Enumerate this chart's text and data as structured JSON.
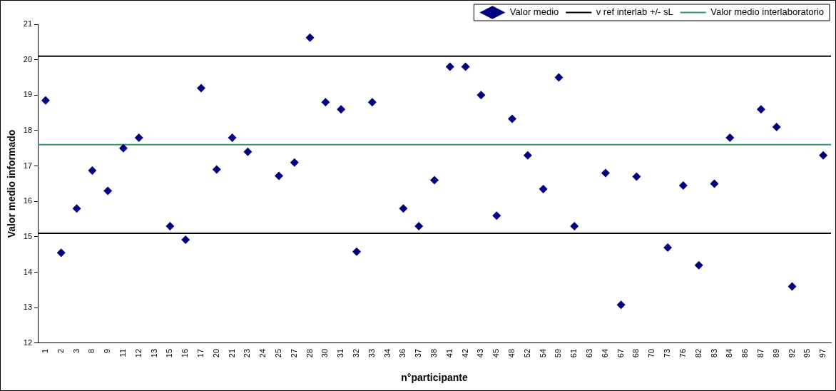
{
  "chart_data": {
    "type": "scatter",
    "xlabel": "n°participante",
    "ylabel": "Valor medio informado",
    "categories": [
      "1",
      "2",
      "3",
      "8",
      "9",
      "11",
      "12",
      "13",
      "15",
      "16",
      "17",
      "20",
      "21",
      "23",
      "24",
      "25",
      "27",
      "28",
      "30",
      "31",
      "32",
      "33",
      "34",
      "36",
      "37",
      "38",
      "41",
      "42",
      "43",
      "45",
      "48",
      "52",
      "54",
      "59",
      "61",
      "63",
      "64",
      "67",
      "68",
      "70",
      "73",
      "76",
      "82",
      "83",
      "84",
      "86",
      "87",
      "89",
      "92",
      "95",
      "97"
    ],
    "series": [
      {
        "name": "Valor medio",
        "color": "#000080",
        "values": [
          18.85,
          14.55,
          15.8,
          16.87,
          16.3,
          17.5,
          17.8,
          null,
          15.3,
          14.92,
          19.2,
          16.9,
          17.8,
          17.4,
          null,
          16.72,
          17.1,
          20.62,
          18.8,
          18.6,
          14.58,
          18.8,
          null,
          15.8,
          15.3,
          16.6,
          19.8,
          19.8,
          19.0,
          15.6,
          18.33,
          17.3,
          16.35,
          19.5,
          15.3,
          null,
          16.8,
          13.08,
          16.7,
          null,
          14.7,
          16.45,
          14.2,
          16.5,
          17.8,
          null,
          18.6,
          18.1,
          13.6,
          null,
          17.3
        ]
      }
    ],
    "ref_lines": [
      {
        "axis": "y",
        "value": 20.1,
        "label": "v ref interlab +/- sL",
        "color": "#000000"
      },
      {
        "axis": "y",
        "value": 15.1,
        "color": "#000000"
      },
      {
        "axis": "y",
        "value": 17.6,
        "label": "Valor medio interlaboratorio",
        "color": "#339966"
      }
    ],
    "ylim": [
      12,
      21
    ],
    "yticks": [
      12,
      13,
      14,
      15,
      16,
      17,
      18,
      19,
      20,
      21
    ],
    "marker": "diamond",
    "grid": false,
    "legend": "top right"
  }
}
